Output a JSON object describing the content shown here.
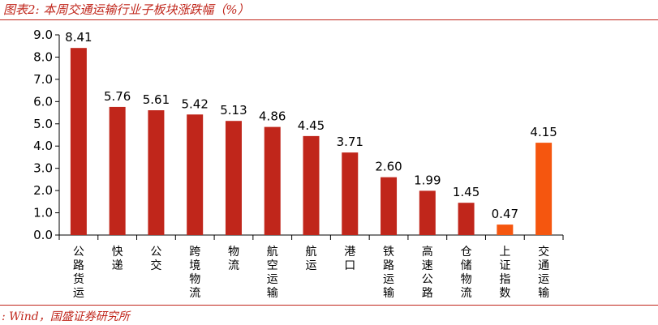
{
  "title": "图表2:  本周交通运输行业子板块涨跌幅（%）",
  "source": ": Wind，国盛证券研究所",
  "colors": {
    "primary": "#c0261b",
    "highlight": "#f5560f",
    "accent": "#c0261b"
  },
  "chart_data": {
    "type": "bar",
    "categories": [
      "公路货运",
      "快递",
      "公交",
      "跨境物流",
      "物流",
      "航空运输",
      "航运",
      "港口",
      "铁路运输",
      "高速公路",
      "仓储物流",
      "上证指数",
      "交通运输"
    ],
    "values": [
      8.41,
      5.76,
      5.61,
      5.42,
      5.13,
      4.86,
      4.45,
      3.71,
      2.6,
      1.99,
      1.45,
      0.47,
      4.15
    ],
    "data_labels": [
      "8.41",
      "5.76",
      "5.61",
      "5.42",
      "5.13",
      "4.86",
      "4.45",
      "3.71",
      "2.60",
      "1.99",
      "1.45",
      "0.47",
      "4.15"
    ],
    "highlighted": [
      "上证指数",
      "交通运输"
    ],
    "yticks": [
      "0.0",
      "1.0",
      "2.0",
      "3.0",
      "4.0",
      "5.0",
      "6.0",
      "7.0",
      "8.0",
      "9.0"
    ],
    "ylim": [
      0,
      9
    ],
    "grid": false,
    "legend": "none"
  }
}
